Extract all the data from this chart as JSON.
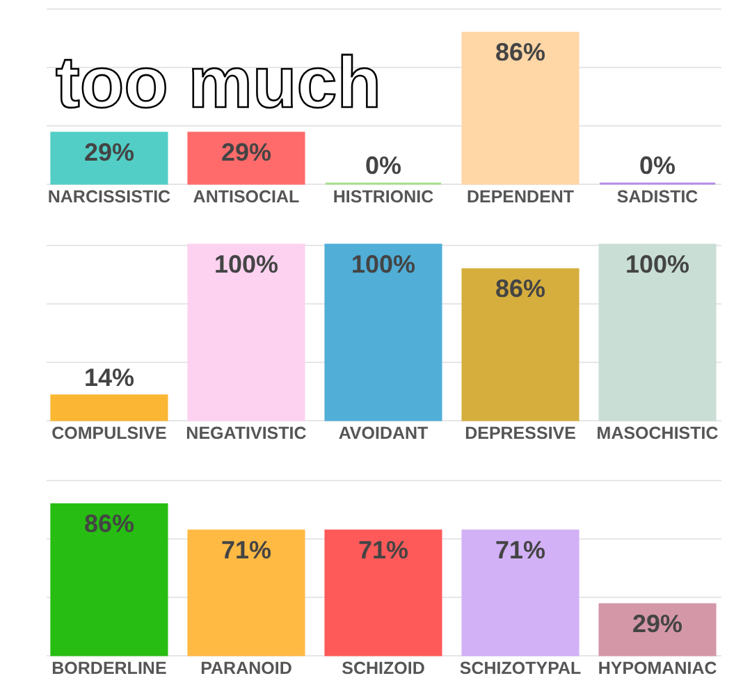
{
  "chart_data": [
    {
      "type": "bar",
      "title": "too much",
      "categories": [
        "NARCISSISTIC",
        "ANTISOCIAL",
        "HISTRIONIC",
        "DEPENDENT",
        "SADISTIC"
      ],
      "values": [
        29,
        29,
        0,
        86,
        0
      ],
      "colors": [
        "#52cec6",
        "#ff6b6b",
        "#a8e08a",
        "#ffd6a6",
        "#b38ee8"
      ],
      "value_labels": [
        "29%",
        "29%",
        "0%",
        "86%",
        "0%"
      ],
      "ylim": [
        0,
        100
      ],
      "yticks": [
        {
          "value": 0,
          "label": null
        },
        {
          "value": 33.3,
          "label": null
        },
        {
          "value": 66.7,
          "label": null
        },
        {
          "value": 100,
          "label": null
        }
      ],
      "grid": "y"
    },
    {
      "type": "bar",
      "categories": [
        "COMPULSIVE",
        "NEGATIVISTIC",
        "AVOIDANT",
        "DEPRESSIVE",
        "MASOCHISTIC"
      ],
      "values": [
        14,
        100,
        100,
        86,
        100
      ],
      "colors": [
        "#fbb633",
        "#fcd2f0",
        "#50aed7",
        "#d5ae3e",
        "#c9ded5"
      ],
      "value_labels": [
        "14%",
        "100%",
        "100%",
        "86%",
        "100%"
      ],
      "ylim": [
        0,
        100
      ],
      "yticks": [
        {
          "value": 0,
          "label": null
        },
        {
          "value": 33.3,
          "label": null
        },
        {
          "value": 66.7,
          "label": null
        },
        {
          "value": 100,
          "label": null
        }
      ],
      "grid": "y"
    },
    {
      "type": "bar",
      "categories": [
        "BORDERLINE",
        "PARANOID",
        "SCHIZOID",
        "SCHIZOTYPAL",
        "HYPOMANIAC"
      ],
      "values": [
        86,
        71,
        71,
        71,
        29
      ],
      "colors": [
        "#27bd12",
        "#ffba44",
        "#ff5a5a",
        "#d2b1f6",
        "#d497a8"
      ],
      "value_labels": [
        "86%",
        "71%",
        "71%",
        "71%",
        "29%"
      ],
      "ylim": [
        0,
        100
      ],
      "yticks": [
        {
          "value": 0,
          "label": null
        },
        {
          "value": 33.3,
          "label": null
        },
        {
          "value": 66.7,
          "label": null
        },
        {
          "value": 100,
          "label": null
        }
      ],
      "grid": "y"
    }
  ]
}
